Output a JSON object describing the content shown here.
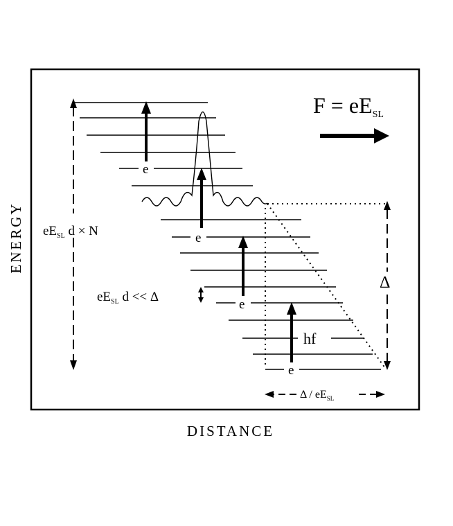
{
  "axes": {
    "x_label": "DISTANCE",
    "y_label": "ENERGY"
  },
  "force_label": {
    "lhs": "F = eE",
    "sub": "SL"
  },
  "labels": {
    "total_drop": {
      "pre": "eE",
      "sub": "SL",
      "post": "d × N"
    },
    "level_spacing": {
      "pre": "eE",
      "sub": "SL",
      "post": "d << Δ"
    },
    "delta": "Δ",
    "width": {
      "pre": "Δ / eE",
      "sub": "SL"
    },
    "photon": "hf",
    "electron": "e"
  },
  "colors": {
    "ink": "#000000",
    "background": "#ffffff"
  }
}
